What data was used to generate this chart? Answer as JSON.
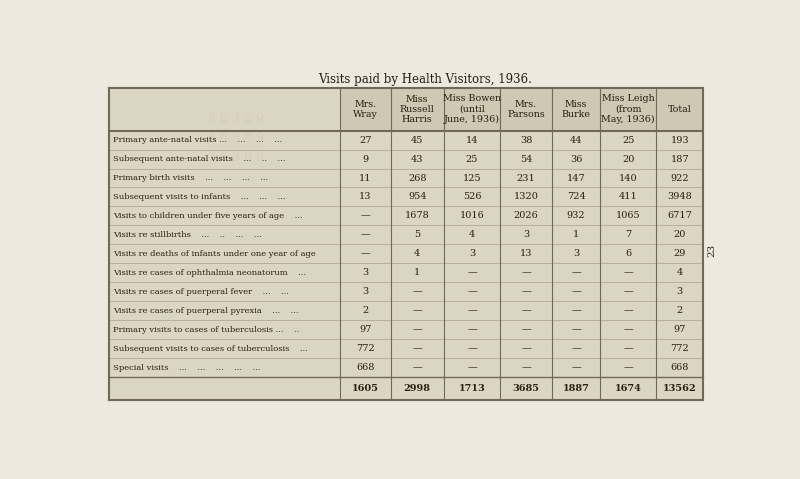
{
  "title": "Visits paid by Health Visitors, 1936.",
  "columns": [
    "Mrs.\nWray",
    "Miss\nRussell\nHarris",
    "Miss Bowen\n(until\nJune, 1936)",
    "Mrs.\nParsons",
    "Miss\nBurke",
    "Miss Leigh\n(from\nMay, 1936)",
    "Total"
  ],
  "row_labels": [
    "Primary ante-natal visits ...    ...    ...    ...",
    "Subsequent ante-natal visits    ...    ..    ...",
    "Primary birth visits    ...    ...    ...    ...",
    "Subsequent visits to infants    ...    ...    ...",
    "Visits to children under five years of age    ...",
    "Visits re stillbirths    ...    ..    ...    ...",
    "Visits re deaths of infants under one year of age",
    "Visits re cases of ophthalmia neonatorum    ...",
    "Visits re cases of puerperal fever    ...    ...",
    "Visits re cases of puerperal pyrexia    ...    ...",
    "Primary visits to cases of tuberculosis ...    ..",
    "Subsequent visits to cases of tuberculosis    ...",
    "Special visits    ...    ...    ...    ...    ..."
  ],
  "data": [
    [
      "27",
      "45",
      "14",
      "38",
      "44",
      "25",
      "193"
    ],
    [
      "9",
      "43",
      "25",
      "54",
      "36",
      "20",
      "187"
    ],
    [
      "11",
      "268",
      "125",
      "231",
      "147",
      "140",
      "922"
    ],
    [
      "13",
      "954",
      "526",
      "1320",
      "724",
      "411",
      "3948"
    ],
    [
      "—",
      "1678",
      "1016",
      "2026",
      "932",
      "1065",
      "6717"
    ],
    [
      "—",
      "5",
      "4",
      "3",
      "1",
      "7",
      "20"
    ],
    [
      "—",
      "4",
      "3",
      "13",
      "3",
      "6",
      "29"
    ],
    [
      "3",
      "1",
      "—",
      "—",
      "—",
      "—",
      "4"
    ],
    [
      "3",
      "—",
      "—",
      "—",
      "—",
      "—",
      "3"
    ],
    [
      "2",
      "—",
      "—",
      "—",
      "—",
      "—",
      "2"
    ],
    [
      "97",
      "—",
      "—",
      "—",
      "—",
      "—",
      "97"
    ],
    [
      "772",
      "—",
      "—",
      "—",
      "—",
      "—",
      "772"
    ],
    [
      "668",
      "—",
      "—",
      "—",
      "—",
      "—",
      "668"
    ]
  ],
  "totals_row": [
    "1605",
    "2998",
    "1713",
    "3685",
    "1887",
    "1674",
    "13562"
  ],
  "page_number": "23",
  "bg_color": "#ede9de",
  "text_color": "#282010",
  "line_color": "#706858",
  "cell_bg_even": "#dbd5c5",
  "cell_bg_header": "#cec8b5"
}
